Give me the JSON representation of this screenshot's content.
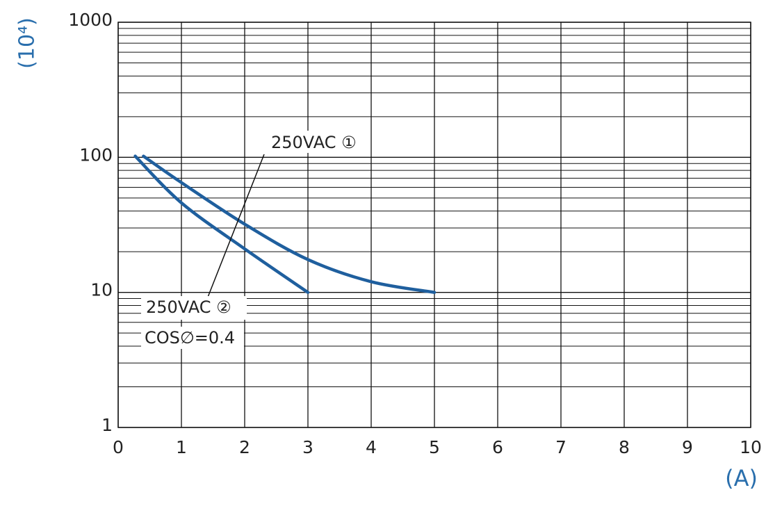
{
  "chart_data": {
    "type": "line",
    "y_label": "(10⁴)",
    "x_label": "(A)",
    "x_scale": "linear",
    "y_scale": "log",
    "xlim": [
      0,
      10
    ],
    "xticks": [
      0,
      1,
      2,
      3,
      4,
      5,
      6,
      7,
      8,
      9,
      10
    ],
    "ylim": [
      1,
      1000
    ],
    "yticks": [
      1,
      10,
      100,
      1000
    ],
    "grid": true,
    "series": [
      {
        "name": "250VAC ①",
        "color": "#1f5f9e",
        "x": [
          0.4,
          1,
          2,
          3,
          4,
          5
        ],
        "values": [
          102,
          65,
          32,
          17.5,
          12,
          10
        ]
      },
      {
        "name": "250VAC ②",
        "color": "#1f5f9e",
        "x": [
          0.27,
          1,
          2,
          3
        ],
        "values": [
          102,
          46,
          21,
          10
        ]
      }
    ],
    "annotation": "COS∅=0.4"
  }
}
